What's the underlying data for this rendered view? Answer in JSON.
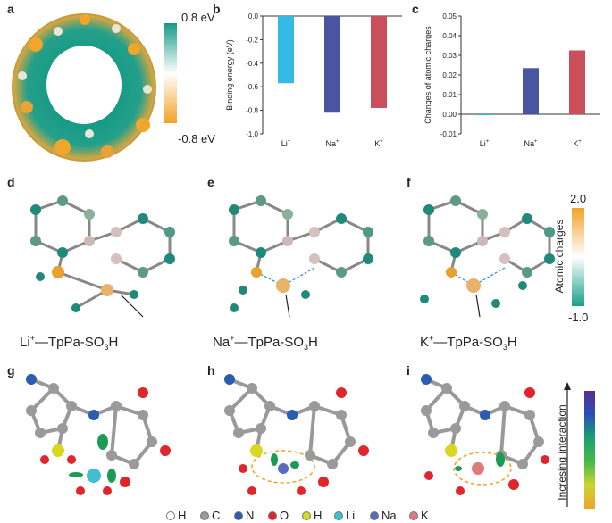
{
  "panels": {
    "a": "a",
    "b": "b",
    "c": "c",
    "d": "d",
    "e": "e",
    "f": "f",
    "g": "g",
    "h": "h",
    "i": "i"
  },
  "esp_colorbar": {
    "top_label": "0.8 eV",
    "bottom_label": "-0.8 eV",
    "colors": [
      "#159a86",
      "#ffffff",
      "#f2a22a"
    ]
  },
  "charge_colorbar": {
    "top_label": "2.0",
    "bottom_label": "-1.0",
    "axis_label": "Atomic charges",
    "colors": [
      "#f2a22a",
      "#ffffff",
      "#17a08a"
    ]
  },
  "interaction_bar": {
    "label": "Incresing interaction"
  },
  "chart_data": [
    {
      "type": "bar",
      "panel": "b",
      "categories": [
        "Li",
        "Na",
        "K"
      ],
      "category_superscripts": [
        "+",
        "+",
        "+"
      ],
      "values": [
        -0.57,
        -0.82,
        -0.78
      ],
      "colors": [
        "#36b9e5",
        "#4a55a2",
        "#c9505a"
      ],
      "ylabel": "Binding energy (eV)",
      "ylim": [
        -1.0,
        0.0
      ],
      "yticks": [
        "0.0",
        "-0.2",
        "-0.4",
        "-0.6",
        "-0.8",
        "-1.0"
      ]
    },
    {
      "type": "bar",
      "panel": "c",
      "categories": [
        "Li",
        "Na",
        "K"
      ],
      "category_superscripts": [
        "+",
        "+",
        "+"
      ],
      "values": [
        -0.0005,
        0.0235,
        0.0325
      ],
      "colors": [
        "#36b9e5",
        "#4a55a2",
        "#c9505a"
      ],
      "ylabel": "Changes of atomic charges",
      "ylim": [
        -0.01,
        0.05
      ],
      "yticks": [
        "0.05",
        "0.04",
        "0.03",
        "0.02",
        "0.01",
        "0.00",
        "-0.01"
      ]
    }
  ],
  "complex_labels": [
    {
      "ion": "Li",
      "sup": "+",
      "base": "—TpPa-SO",
      "sub": "3",
      "tail": "H"
    },
    {
      "ion": "Na",
      "sup": "+",
      "base": "—TpPa-SO",
      "sub": "3",
      "tail": "H"
    },
    {
      "ion": "K",
      "sup": "+",
      "base": "—TpPa-SO",
      "sub": "3",
      "tail": "H"
    }
  ],
  "atom_legend": [
    {
      "label": "H",
      "color": "#ffffff"
    },
    {
      "label": "C",
      "color": "#9a9a9a"
    },
    {
      "label": "N",
      "color": "#2a5db0"
    },
    {
      "label": "O",
      "color": "#e0262b"
    },
    {
      "label": "H",
      "color": "#d8d820"
    },
    {
      "label": "Li",
      "color": "#3fbfd0"
    },
    {
      "label": "Na",
      "color": "#5a6cc0"
    },
    {
      "label": "K",
      "color": "#e07a7a"
    }
  ]
}
